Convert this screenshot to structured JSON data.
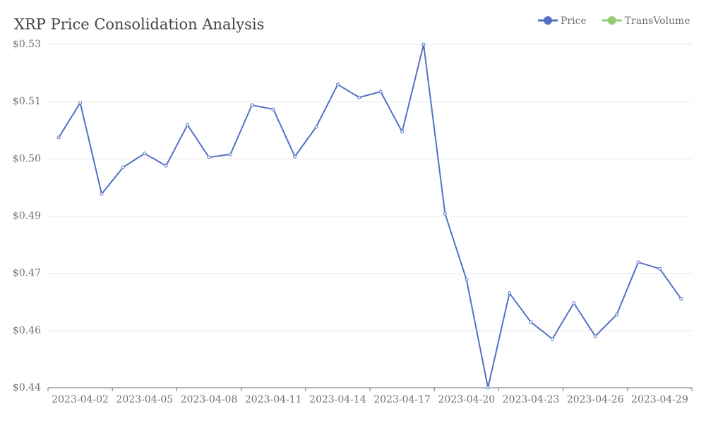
{
  "chart_data": {
    "type": "line",
    "title": "XRP Price Consolidation Analysis",
    "categories": [
      null,
      "2023-04-02",
      null,
      null,
      "2023-04-05",
      null,
      null,
      "2023-04-08",
      null,
      null,
      "2023-04-11",
      null,
      null,
      "2023-04-14",
      null,
      null,
      "2023-04-17",
      null,
      null,
      "2023-04-20",
      null,
      null,
      "2023-04-23",
      null,
      null,
      "2023-04-26",
      null,
      null,
      "2023-04-29",
      null
    ],
    "series": [
      {
        "name": "Price",
        "color": "#5470c6",
        "values": [
          0.5056,
          0.5147,
          0.4908,
          0.4978,
          0.5014,
          0.4982,
          0.5089,
          0.5004,
          0.5012,
          0.5141,
          0.513,
          0.5006,
          0.5084,
          0.5195,
          0.5161,
          0.5176,
          0.5071,
          0.53,
          0.4856,
          0.4683,
          0.44,
          0.4648,
          0.4572,
          0.4528,
          0.4622,
          0.4535,
          0.4592,
          0.4729,
          0.4712,
          0.4633
        ]
      },
      {
        "name": "TransVolume",
        "color": "#91cc75",
        "values": [
          null,
          null,
          null,
          null,
          null,
          null,
          null,
          null,
          null,
          null,
          null,
          null,
          null,
          null,
          null,
          null,
          null,
          null,
          null,
          null,
          null,
          null,
          null,
          null,
          null,
          null,
          null,
          null,
          null,
          null
        ]
      }
    ],
    "ylim": [
      0.44,
      0.53
    ],
    "yticks": [
      {
        "value": 0.44,
        "label": "$0.44"
      },
      {
        "value": 0.455,
        "label": "$0.46"
      },
      {
        "value": 0.47,
        "label": "$0.47"
      },
      {
        "value": 0.485,
        "label": "$0.49"
      },
      {
        "value": 0.5,
        "label": "$0.50"
      },
      {
        "value": 0.515,
        "label": "$0.51"
      },
      {
        "value": 0.53,
        "label": "$0.53"
      }
    ],
    "grid": true,
    "legend": "top-right"
  }
}
